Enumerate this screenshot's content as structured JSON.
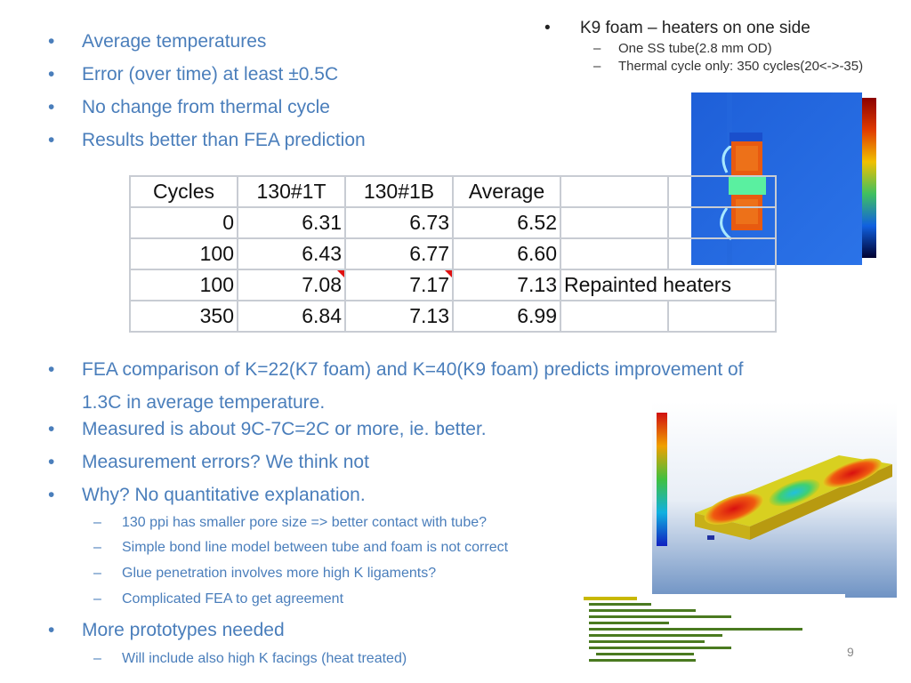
{
  "left_bullets_top": [
    "Average temperatures",
    "Error (over time) at least ±0.5C",
    "No change from thermal cycle",
    "Results better than FEA prediction"
  ],
  "k9": {
    "heading": "K9 foam – heaters on one side",
    "subs": [
      "One SS tube(2.8 mm OD)",
      "Thermal cycle only: 350 cycles(20<->-35)"
    ]
  },
  "table": {
    "headers": [
      "Cycles",
      "130#1T",
      "130#1B",
      "Average",
      "",
      ""
    ],
    "rows": [
      [
        "0",
        "6.31",
        "6.73",
        "6.52",
        "",
        ""
      ],
      [
        "100",
        "6.43",
        "6.77",
        "6.60",
        "",
        ""
      ],
      [
        "100",
        "7.08",
        "7.17",
        "7.13",
        "Repainted heaters",
        ""
      ],
      [
        "350",
        "6.84",
        "7.13",
        "6.99",
        "",
        ""
      ]
    ]
  },
  "lower_bullets": [
    "FEA comparison of K=22(K7 foam) and K=40(K9 foam) predicts improvement of",
    "1.3C in average temperature.",
    "Measured is about 9C-7C=2C or more, ie. better.",
    "Measurement errors? We think not",
    "Why? No quantitative explanation."
  ],
  "why_subs": [
    "130 ppi has smaller pore size => better contact with tube?",
    "Simple bond line model between tube and foam is not correct",
    "Glue penetration involves more high K ligaments?",
    "Complicated FEA to get agreement"
  ],
  "last_bullet": "More prototypes needed",
  "last_sub": "Will include also high K facings (heat treated)",
  "page_number": "9",
  "colors": {
    "bullet_text": "#4a7ebb",
    "table_border": "#c8ccd3"
  }
}
